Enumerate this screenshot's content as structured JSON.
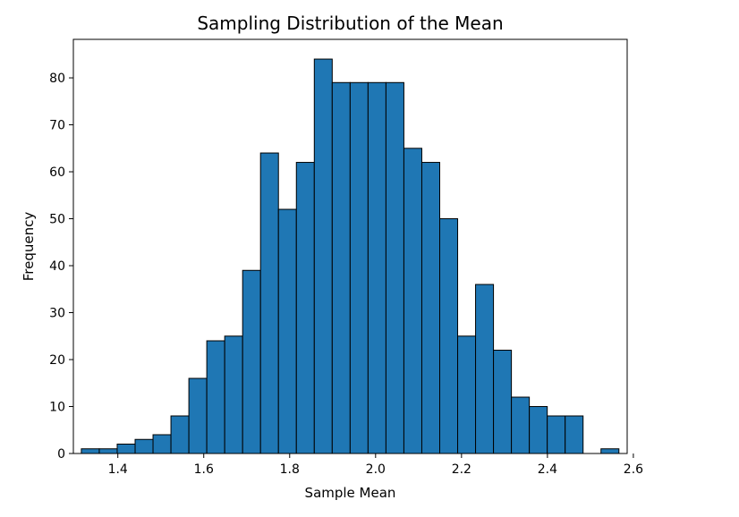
{
  "chart_data": {
    "type": "bar",
    "title": "Sampling Distribution of the Mean",
    "xlabel": "Sample Mean",
    "ylabel": "Frequency",
    "xlim": [
      1.2965,
      2.5856
    ],
    "ylim": [
      0,
      88.2
    ],
    "xticks": [
      1.4,
      1.6,
      1.8,
      2.0,
      2.2,
      2.4,
      2.6
    ],
    "xtick_labels": [
      "1.4",
      "1.6",
      "1.8",
      "2.0",
      "2.2",
      "2.4",
      "2.6"
    ],
    "yticks": [
      0,
      10,
      20,
      30,
      40,
      50,
      60,
      70,
      80
    ],
    "ytick_labels": [
      "0",
      "10",
      "20",
      "30",
      "40",
      "50",
      "60",
      "70",
      "80"
    ],
    "bins": {
      "start": 1.3151,
      "width": 0.04171,
      "counts": [
        1,
        1,
        2,
        3,
        4,
        8,
        16,
        24,
        25,
        39,
        64,
        52,
        62,
        84,
        79,
        79,
        79,
        79,
        65,
        62,
        50,
        25,
        36,
        22,
        12,
        10,
        8,
        8,
        0,
        1
      ]
    },
    "bar_color": "#1f77b4",
    "edge_color": "#000000",
    "grid": false,
    "legend": "none"
  }
}
